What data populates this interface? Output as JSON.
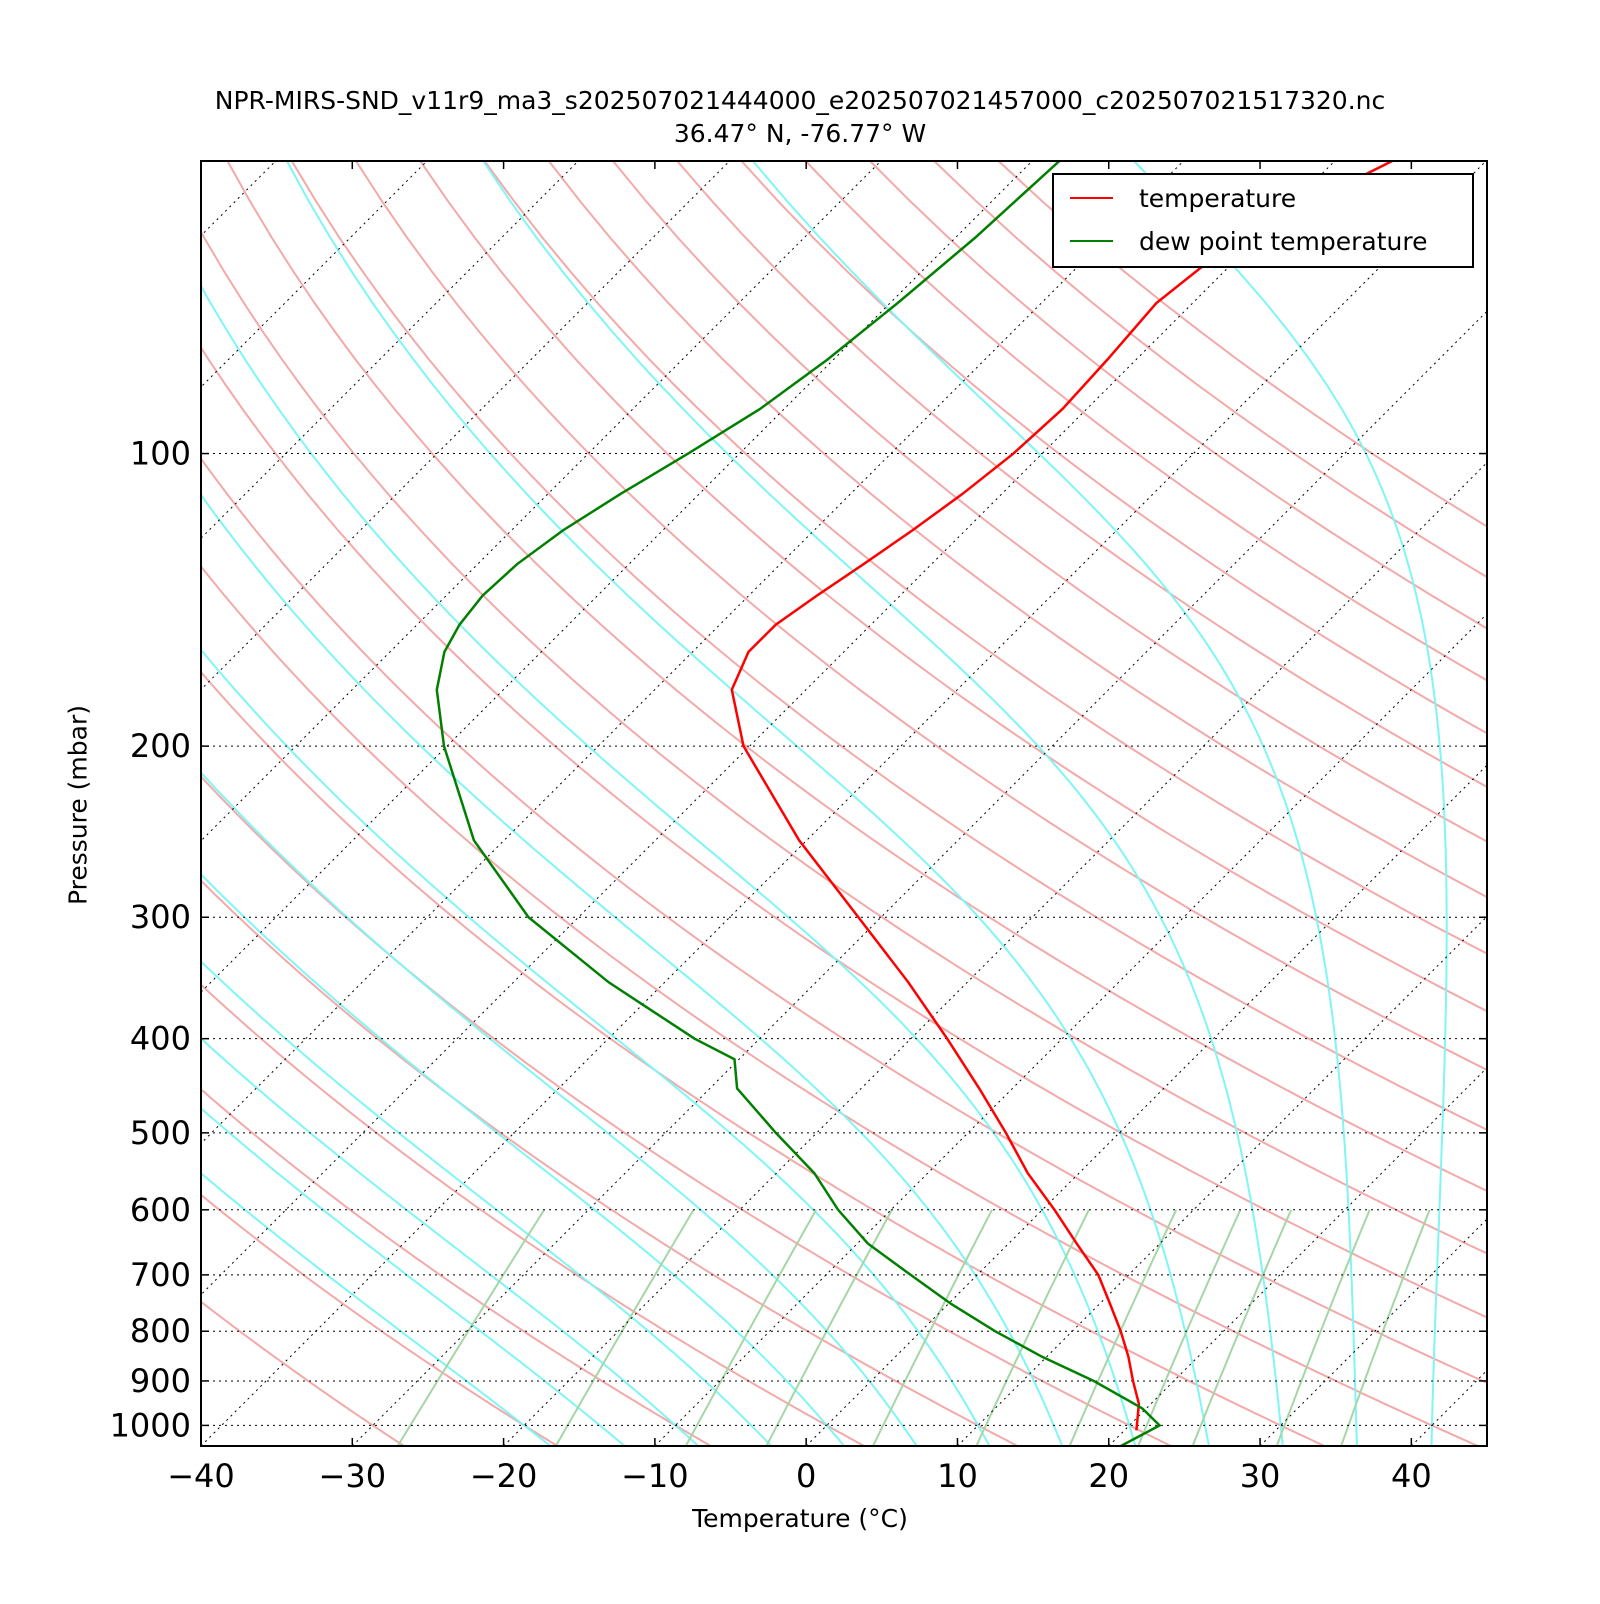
{
  "chart_data": {
    "type": "line",
    "chart_kind": "skew-T log-P diagram",
    "title": "NPR-MIRS-SND_v11r9_ma3_s202507021444000_e202507021457000_c202507021517320.nc",
    "subtitle": "36.47° N, -76.77° W",
    "xlabel": "Temperature (°C)",
    "ylabel": "Pressure (mbar)",
    "x_ticks": [
      -40,
      -30,
      -20,
      -10,
      0,
      10,
      20,
      30,
      40
    ],
    "x_tick_labels": [
      "−40",
      "−30",
      "−20",
      "−10",
      "0",
      "10",
      "20",
      "30",
      "40"
    ],
    "y_ticks": [
      100,
      200,
      300,
      400,
      500,
      600,
      700,
      800,
      900,
      1000
    ],
    "y_tick_labels": [
      "100",
      "200",
      "300",
      "400",
      "500",
      "600",
      "700",
      "800",
      "900",
      "1000"
    ],
    "xlim": [
      -40,
      45
    ],
    "ylim": [
      1050,
      50
    ],
    "y_scale": "log",
    "grid": "dotted horizontal isobars and dotted skewed isotherms",
    "legend_position": "top-right",
    "background_lines": [
      "dry adiabats",
      "moist adiabats",
      "mixing ratio lines"
    ],
    "colors": {
      "temperature": "#ff0000",
      "dew_point": "#007f00",
      "dry_adiabat": "#f4a9a9",
      "moist_adiabat": "#7ff5f5",
      "mixing_ratio": "#a5d6a5",
      "grid": "#000000"
    },
    "series": [
      {
        "name": "temperature",
        "color": "#ff0000",
        "points": [
          {
            "p": 1012,
            "t": 20.8
          },
          {
            "p": 950,
            "t": 19.2
          },
          {
            "p": 900,
            "t": 17.3
          },
          {
            "p": 850,
            "t": 15.4
          },
          {
            "p": 800,
            "t": 13.2
          },
          {
            "p": 750,
            "t": 10.7
          },
          {
            "p": 700,
            "t": 8.0
          },
          {
            "p": 650,
            "t": 4.5
          },
          {
            "p": 600,
            "t": 0.8
          },
          {
            "p": 550,
            "t": -3.4
          },
          {
            "p": 500,
            "t": -7.5
          },
          {
            "p": 450,
            "t": -12.2
          },
          {
            "p": 400,
            "t": -17.6
          },
          {
            "p": 350,
            "t": -23.9
          },
          {
            "p": 300,
            "t": -31.5
          },
          {
            "p": 250,
            "t": -40.5
          },
          {
            "p": 200,
            "t": -50.4
          },
          {
            "p": 175,
            "t": -54.9
          },
          {
            "p": 160,
            "t": -56.3
          },
          {
            "p": 150,
            "t": -56.3
          },
          {
            "p": 140,
            "t": -55.5
          },
          {
            "p": 130,
            "t": -54.5
          },
          {
            "p": 120,
            "t": -53.5
          },
          {
            "p": 110,
            "t": -52.6
          },
          {
            "p": 100,
            "t": -51.9
          },
          {
            "p": 90,
            "t": -51.6
          },
          {
            "p": 80,
            "t": -51.9
          },
          {
            "p": 70,
            "t": -52.4
          },
          {
            "p": 60,
            "t": -51.3
          },
          {
            "p": 50,
            "t": -46.2
          }
        ]
      },
      {
        "name": "dew point temperature",
        "color": "#007f00",
        "points": [
          {
            "p": 1050,
            "t": 20.8
          },
          {
            "p": 1000,
            "t": 22.0
          },
          {
            "p": 960,
            "t": 19.7
          },
          {
            "p": 900,
            "t": 14.7
          },
          {
            "p": 850,
            "t": 9.7
          },
          {
            "p": 800,
            "t": 4.9
          },
          {
            "p": 750,
            "t": 0.2
          },
          {
            "p": 700,
            "t": -4.4
          },
          {
            "p": 650,
            "t": -9.3
          },
          {
            "p": 600,
            "t": -13.5
          },
          {
            "p": 550,
            "t": -17.5
          },
          {
            "p": 500,
            "t": -22.7
          },
          {
            "p": 450,
            "t": -28.2
          },
          {
            "p": 420,
            "t": -30.3
          },
          {
            "p": 400,
            "t": -34.3
          },
          {
            "p": 350,
            "t": -43.7
          },
          {
            "p": 300,
            "t": -53.3
          },
          {
            "p": 250,
            "t": -62.0
          },
          {
            "p": 200,
            "t": -70.2
          },
          {
            "p": 175,
            "t": -74.4
          },
          {
            "p": 160,
            "t": -76.4
          },
          {
            "p": 150,
            "t": -77.2
          },
          {
            "p": 140,
            "t": -77.6
          },
          {
            "p": 130,
            "t": -77.4
          },
          {
            "p": 120,
            "t": -76.6
          },
          {
            "p": 110,
            "t": -75.2
          },
          {
            "p": 100,
            "t": -73.4
          },
          {
            "p": 90,
            "t": -71.6
          },
          {
            "p": 80,
            "t": -70.4
          },
          {
            "p": 70,
            "t": -69.5
          },
          {
            "p": 60,
            "t": -68.7
          },
          {
            "p": 50,
            "t": -68.2
          }
        ]
      }
    ],
    "legend": [
      "temperature",
      "dew point temperature"
    ]
  }
}
